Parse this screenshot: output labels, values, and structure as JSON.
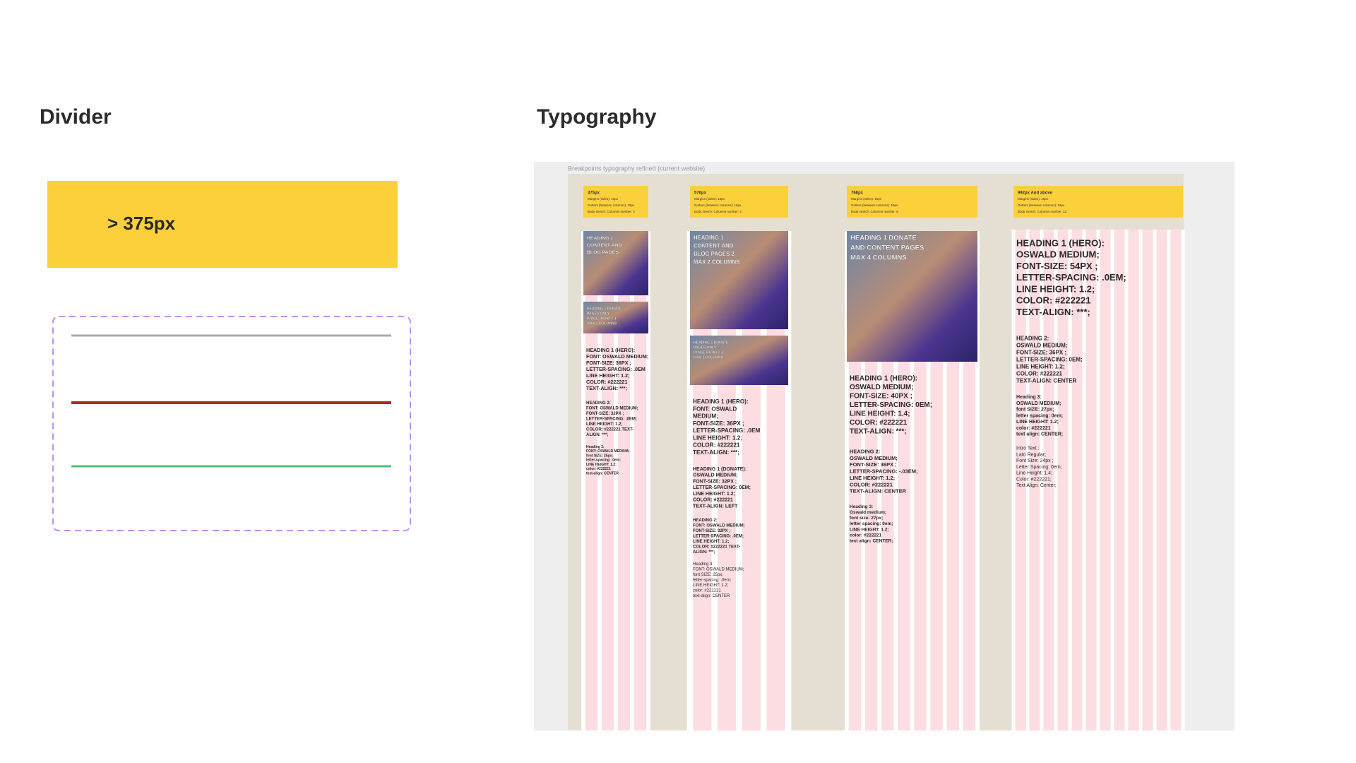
{
  "divider": {
    "title": "Divider",
    "breakpoint_label": "> 375px"
  },
  "typography": {
    "title": "Typography",
    "caption": "Breakpoints typography refined (current website)",
    "columns": [
      {
        "header": [
          "375px",
          "Margins (sides): 16px",
          "Gutters (between columns): 16px",
          "Body stretch: Columns number: 4"
        ],
        "images": [
          [
            "HEADING 1",
            "CONTENT AND",
            "BLOG PAGES"
          ],
          [
            "HEADING 1 DONATE",
            "PAGES ONLY",
            "IMAGE RATIO 2:1",
            "MAX 2 COLUMNS"
          ]
        ],
        "spec": [
          [
            "HEADING 1 (HERO):",
            "FONT: OSWALD MEDIUM;",
            "FONT-SIZE: 36PX ;",
            "LETTER-SPACING: .0EM",
            "LINE HEIGHT: 1.2;",
            "COLOR: #222221",
            "TEXT-ALIGN: ***;"
          ],
          [
            "HEADING 2:",
            "FONT: OSWALD MEDIUM;",
            "FONT-SIZE: 32PX ;",
            "LETTER-SPACING: .0EM;",
            "LINE HEIGHT: 1.2;",
            "COLOR: #222221 TEXT-",
            "ALIGN: ***;"
          ],
          [
            "Heading 3:",
            "FONT: OSWALD MEDIUM;",
            "font SIZE: 25px;",
            "letter-spacing: .0em;",
            "LINE HEIGHT: 1.2;",
            "color: #222221",
            "text-align: CENTER"
          ]
        ]
      },
      {
        "header": [
          "576px",
          "Margins (sides): 16px",
          "Gutters (between columns): 16px",
          "Body stretch: Columns number: 4"
        ],
        "images": [
          [
            "HEADING 1",
            "CONTENT AND",
            "BLOG PAGES 2",
            "MAX 2 COLUMNS"
          ],
          [
            "HEADING 1 DONATE",
            "PAGES ONLY",
            "IMAGE RATIO 2:1",
            "MAX 2 COLUMNS"
          ]
        ],
        "spec": [
          [
            "HEADING 1 (HERO):",
            "FONT: OSWALD",
            "MEDIUM;",
            "FONT-SIZE: 36PX ;",
            "LETTER-SPACING: .0EM",
            "LINE HEIGHT: 1.2;",
            "COLOR: #222221",
            "TEXT-ALIGN: ***;"
          ],
          [
            "HEADING 1 (DONATE):",
            "OSWALD MEDIUM;",
            "FONT-SIZE: 32PX ;",
            "LETTER-SPACING: 0EM;",
            "LINE HEIGHT: 1.2;",
            "COLOR: #222221",
            "TEXT-ALIGN: LEFT"
          ],
          [
            "HEADING 2:",
            "FONT: OSWALD MEDIUM;",
            "FONT-SIZE: 32PX ;",
            "LETTER-SPACING: .0EM;",
            "LINE HEIGHT: 1.2;",
            "COLOR: #222221 TEXT-",
            "ALIGN: ***;"
          ],
          [
            "Heading 3:",
            "FONT: OSWALD MEDIUM;",
            "font SIZE: 25px;",
            "letter-spacing: .0em;",
            "LINE HEIGHT: 1.2;",
            "color: #222221",
            "text-align: CENTER"
          ]
        ]
      },
      {
        "header": [
          "768px",
          "Margins (sides): 16px",
          "Gutters (between columns): 16px",
          "Body stretch: Columns number: 8"
        ],
        "images": [
          [
            "HEADING 1 DONATE",
            "AND CONTENT PAGES",
            "MAX 4 COLUMNS"
          ]
        ],
        "spec": [
          [
            "HEADING 1 (HERO):",
            "OSWALD MEDIUM;",
            "FONT-SIZE: 40PX ;",
            "LETTER-SPACING: 0EM;",
            "LINE HEIGHT: 1.4;",
            "COLOR: #222221",
            "TEXT-ALIGN: ***;"
          ],
          [
            "HEADING 2:",
            "OSWALD MEDIUM;",
            "FONT-SIZE: 36PX ;",
            "LETTER-SPACING: -.03EM;",
            "LINE HEIGHT: 1.2;",
            "COLOR: #222221",
            "TEXT-ALIGN: CENTER"
          ],
          [
            "Heading 3:",
            "Oswald medium;",
            "font size: 27px;",
            "letter spacing: 0em;",
            "LINE HEIGHT: 1.2;",
            "color: #222221",
            "text align: CENTER;"
          ]
        ]
      },
      {
        "header": [
          "992px And above",
          "Margins (sides): 16px",
          "Gutters (between columns): 16px",
          "Body stretch: Columns number: 12"
        ],
        "images": [],
        "spec": [
          [
            "HEADING 1 (HERO):",
            "OSWALD MEDIUM;",
            "FONT-SIZE: 54PX ;",
            "LETTER-SPACING: .0EM;",
            "LINE HEIGHT: 1.2;",
            "COLOR: #222221",
            "TEXT-ALIGN: ***;"
          ],
          [
            "HEADING 2:",
            "OSWALD MEDIUM;",
            "FONT-SIZE: 36PX ;",
            "LETTER-SPACING: 0EM;",
            "LINE HEIGHT: 1.2;",
            "COLOR: #222221",
            "TEXT-ALIGN: CENTER"
          ],
          [
            "Heading 3:",
            "OSWALD MEDIUM;",
            "font SIZE: 27px;",
            "letter spacing: 0em;",
            "LINE HEIGHT: 1.2;",
            "color: #222221",
            "text align: CENTER;"
          ],
          [
            "Intro Text :",
            "Lato Regular;",
            "Font Size: 24px ;",
            "Letter Spacing: 0em;",
            "Line Height: 1.4;",
            "Color: #222221;",
            "Text Align: Center;"
          ]
        ]
      }
    ]
  }
}
